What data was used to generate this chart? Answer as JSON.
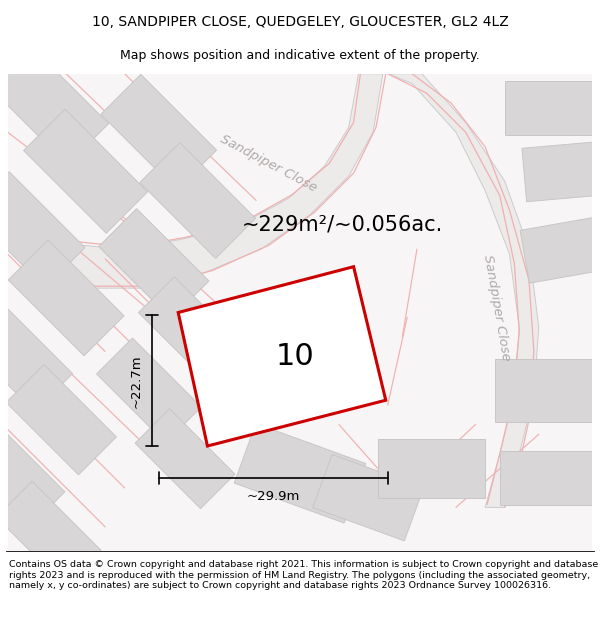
{
  "title_line1": "10, SANDPIPER CLOSE, QUEDGELEY, GLOUCESTER, GL2 4LZ",
  "title_line2": "Map shows position and indicative extent of the property.",
  "footer_text": "Contains OS data © Crown copyright and database right 2021. This information is subject to Crown copyright and database rights 2023 and is reproduced with the permission of HM Land Registry. The polygons (including the associated geometry, namely x, y co-ordinates) are subject to Crown copyright and database rights 2023 Ordnance Survey 100026316.",
  "area_text": "~229m²/~0.056ac.",
  "plot_number": "10",
  "dim_width": "~29.9m",
  "dim_height": "~22.7m",
  "road_label_bottom": "Sandpiper Close",
  "road_label_right": "Sandpiper Close",
  "map_bg": "#f7f5f5",
  "plot_fill": "#ffffff",
  "plot_edge": "#cc0000",
  "building_fill": "#d8d6d6",
  "building_edge": "#c8c6c6",
  "road_fill": "#edeaea",
  "road_outline_color": "#f0b0b0",
  "road_gray_outline": "#cccccc",
  "title_fontsize": 10,
  "subtitle_fontsize": 9,
  "footer_fontsize": 6.8
}
